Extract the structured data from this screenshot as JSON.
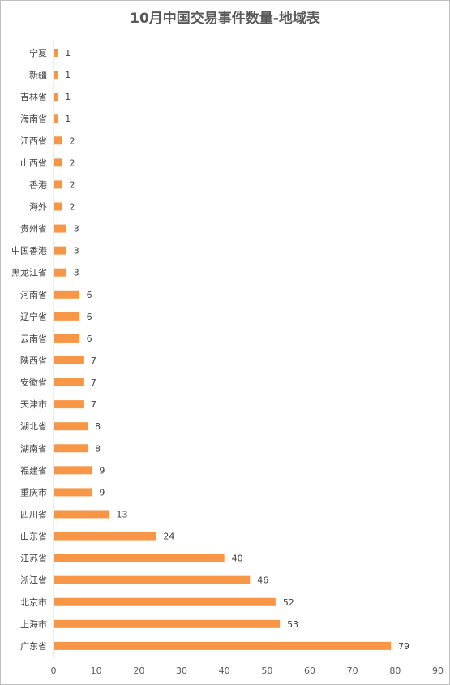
{
  "chart_data": {
    "type": "bar",
    "orientation": "horizontal",
    "title": "10月中国交易事件数量-地域表",
    "categories": [
      "宁夏",
      "新疆",
      "吉林省",
      "海南省",
      "江西省",
      "山西省",
      "香港",
      "海外",
      "贵州省",
      "中国香港",
      "黑龙江省",
      "河南省",
      "辽宁省",
      "云南省",
      "陕西省",
      "安徽省",
      "天津市",
      "湖北省",
      "湖南省",
      "福建省",
      "重庆市",
      "四川省",
      "山东省",
      "江苏省",
      "浙江省",
      "北京市",
      "上海市",
      "广东省"
    ],
    "values": [
      1,
      1,
      1,
      1,
      2,
      2,
      2,
      2,
      3,
      3,
      3,
      6,
      6,
      6,
      7,
      7,
      7,
      8,
      8,
      9,
      9,
      13,
      24,
      40,
      46,
      52,
      53,
      79
    ],
    "xlim": [
      0,
      90
    ],
    "xticks": [
      0,
      10,
      20,
      30,
      40,
      50,
      60,
      70,
      80,
      90
    ],
    "grid": false,
    "bar_color": "#F79646",
    "data_labels": true
  }
}
